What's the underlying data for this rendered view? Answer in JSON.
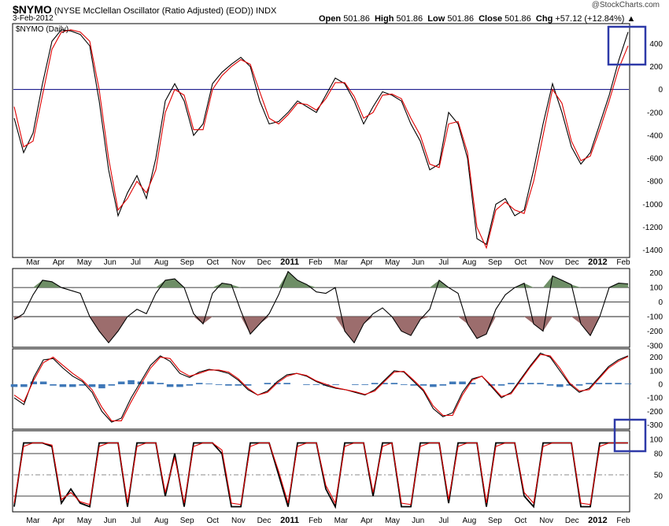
{
  "header": {
    "symbol": "$NYMO",
    "description": "(NYSE McClellan Oscillator (Ratio Adjusted) (EOD))",
    "exchange": "INDX",
    "date": "3-Feb-2012",
    "watermark": "@StockCharts.com",
    "open_label": "Open",
    "open": "501.86",
    "high_label": "High",
    "high": "501.86",
    "low_label": "Low",
    "low": "501.86",
    "close_label": "Close",
    "close": "501.86",
    "chg_label": "Chg",
    "chg": "+57.12 (+12.84%)",
    "legend": "$NYMO (Daily)"
  },
  "colors": {
    "price": "#000000",
    "signal": "#e00000",
    "zero_line": "#000080",
    "hist_pos": "#6e8e66",
    "hist_neg": "#9c6d6d",
    "macd_hist": "#3f78b8",
    "highlight_box": "#2e3aa8"
  },
  "chart_data": [
    {
      "panel": "main",
      "type": "line",
      "ylim": [
        -1450,
        560
      ],
      "yticks": [
        "400",
        "200",
        "0",
        "-200",
        "-400",
        "-600",
        "-800",
        "-1000",
        "-1200",
        "-1400"
      ],
      "x_axis": [
        "Mar",
        "Apr",
        "May",
        "Jun",
        "Jul",
        "Aug",
        "Sep",
        "Oct",
        "Nov",
        "Dec",
        "2011",
        "Feb",
        "Mar",
        "Apr",
        "May",
        "Jun",
        "Jul",
        "Aug",
        "Sep",
        "Oct",
        "Nov",
        "Dec",
        "2012",
        "Feb"
      ],
      "series": [
        {
          "name": "$NYMO (Daily)",
          "values": [
            -250,
            -550,
            -380,
            50,
            420,
            520,
            510,
            480,
            380,
            -100,
            -700,
            -1100,
            -900,
            -750,
            -950,
            -600,
            -100,
            50,
            -100,
            -400,
            -300,
            50,
            150,
            220,
            280,
            200,
            -100,
            -300,
            -280,
            -200,
            -100,
            -150,
            -200,
            -50,
            100,
            50,
            -100,
            -300,
            -150,
            -20,
            -50,
            -100,
            -300,
            -450,
            -700,
            -650,
            -200,
            -300,
            -600,
            -1300,
            -1350,
            -1000,
            -950,
            -1100,
            -1050,
            -700,
            -300,
            50,
            -200,
            -500,
            -650,
            -550,
            -300,
            -50,
            250,
            500
          ]
        },
        {
          "values": [
            -150,
            -500,
            -450,
            -50,
            350,
            500,
            520,
            500,
            420,
            0,
            -600,
            -1050,
            -950,
            -800,
            -900,
            -700,
            -200,
            0,
            -50,
            -350,
            -350,
            0,
            120,
            200,
            260,
            220,
            -20,
            -250,
            -300,
            -220,
            -120,
            -130,
            -180,
            -80,
            60,
            60,
            -60,
            -250,
            -200,
            -50,
            -40,
            -80,
            -250,
            -400,
            -650,
            -680,
            -300,
            -280,
            -550,
            -1200,
            -1380,
            -1050,
            -980,
            -1050,
            -1080,
            -800,
            -400,
            0,
            -120,
            -450,
            -620,
            -580,
            -350,
            -100,
            180,
            380
          ]
        }
      ]
    },
    {
      "panel": "momentum",
      "type": "area",
      "ylim": [
        -300,
        220
      ],
      "yticks": [
        "200",
        "100",
        "0",
        "-100",
        "-200",
        "-300"
      ],
      "levels": [
        100,
        0,
        -100
      ],
      "series": [
        {
          "values": [
            -120,
            -80,
            50,
            150,
            140,
            100,
            80,
            60,
            -100,
            -200,
            -280,
            -200,
            -100,
            -50,
            -80,
            60,
            150,
            160,
            100,
            -80,
            -150,
            60,
            130,
            120,
            -60,
            -220,
            -150,
            -80,
            50,
            210,
            150,
            120,
            70,
            60,
            100,
            -200,
            -280,
            -150,
            -80,
            -40,
            -100,
            -200,
            -230,
            -120,
            -50,
            150,
            100,
            60,
            -150,
            -250,
            -220,
            -50,
            50,
            100,
            130,
            -150,
            -200,
            180,
            150,
            120,
            -150,
            -230,
            -100,
            100,
            130,
            125
          ]
        }
      ]
    },
    {
      "panel": "macd",
      "type": "line",
      "ylim": [
        -320,
        250
      ],
      "yticks": [
        "200",
        "100",
        "0",
        "-100",
        "-200",
        "-300"
      ],
      "series": [
        {
          "name": "macd",
          "values": [
            -100,
            -150,
            50,
            180,
            190,
            120,
            60,
            20,
            -60,
            -200,
            -280,
            -250,
            -100,
            20,
            140,
            210,
            170,
            80,
            50,
            90,
            110,
            100,
            80,
            30,
            -40,
            -80,
            -50,
            20,
            70,
            80,
            60,
            20,
            -10,
            -30,
            -40,
            -60,
            -80,
            -40,
            30,
            100,
            90,
            20,
            -50,
            -180,
            -240,
            -210,
            -60,
            40,
            60,
            -20,
            -100,
            -60,
            40,
            140,
            230,
            200,
            100,
            0,
            -60,
            -30,
            50,
            130,
            180,
            210
          ]
        },
        {
          "name": "signal",
          "values": [
            -80,
            -130,
            30,
            160,
            200,
            140,
            80,
            30,
            -40,
            -170,
            -270,
            -270,
            -130,
            0,
            120,
            200,
            190,
            100,
            60,
            80,
            105,
            105,
            90,
            40,
            -30,
            -80,
            -60,
            10,
            60,
            80,
            65,
            25,
            0,
            -25,
            -40,
            -55,
            -75,
            -50,
            20,
            90,
            95,
            30,
            -40,
            -160,
            -230,
            -230,
            -80,
            30,
            60,
            -10,
            -90,
            -70,
            30,
            130,
            220,
            210,
            120,
            10,
            -50,
            -40,
            40,
            120,
            170,
            205
          ]
        },
        {
          "name": "histogram",
          "values": [
            -20,
            -20,
            20,
            20,
            -10,
            -20,
            -20,
            -10,
            -20,
            -30,
            -10,
            20,
            30,
            20,
            20,
            10,
            -20,
            -20,
            -10,
            10,
            5,
            -5,
            -10,
            -10,
            -10,
            0,
            10,
            10,
            10,
            0,
            -5,
            -5,
            -10,
            -5,
            0,
            -5,
            -5,
            10,
            10,
            10,
            -5,
            -10,
            -10,
            -20,
            -10,
            20,
            20,
            10,
            0,
            -10,
            -10,
            10,
            10,
            10,
            10,
            -10,
            -20,
            -10,
            -10,
            10,
            10,
            10,
            10,
            5
          ]
        }
      ]
    },
    {
      "panel": "stochastic",
      "type": "line",
      "ylim": [
        0,
        110
      ],
      "yticks": [
        "100",
        "80",
        "50",
        "20"
      ],
      "levels": [
        80,
        50,
        20
      ],
      "series": [
        {
          "name": "%K",
          "values": [
            5,
            95,
            95,
            95,
            90,
            10,
            30,
            10,
            5,
            95,
            95,
            95,
            5,
            95,
            95,
            95,
            20,
            80,
            5,
            95,
            95,
            95,
            80,
            5,
            5,
            95,
            95,
            95,
            50,
            5,
            95,
            95,
            95,
            30,
            5,
            95,
            95,
            95,
            20,
            95,
            95,
            5,
            5,
            95,
            95,
            95,
            10,
            95,
            95,
            95,
            5,
            95,
            95,
            95,
            20,
            5,
            95,
            95,
            95,
            95,
            5,
            5,
            95,
            95,
            95,
            95
          ]
        },
        {
          "name": "%D",
          "values": [
            10,
            90,
            95,
            95,
            92,
            15,
            25,
            12,
            8,
            90,
            95,
            95,
            10,
            90,
            95,
            95,
            25,
            75,
            10,
            90,
            95,
            95,
            85,
            10,
            8,
            90,
            95,
            95,
            55,
            10,
            90,
            95,
            95,
            35,
            10,
            90,
            95,
            95,
            25,
            90,
            95,
            10,
            8,
            90,
            95,
            95,
            15,
            90,
            95,
            95,
            10,
            90,
            95,
            95,
            25,
            10,
            90,
            95,
            95,
            95,
            10,
            8,
            90,
            95,
            95,
            95
          ]
        }
      ]
    }
  ]
}
